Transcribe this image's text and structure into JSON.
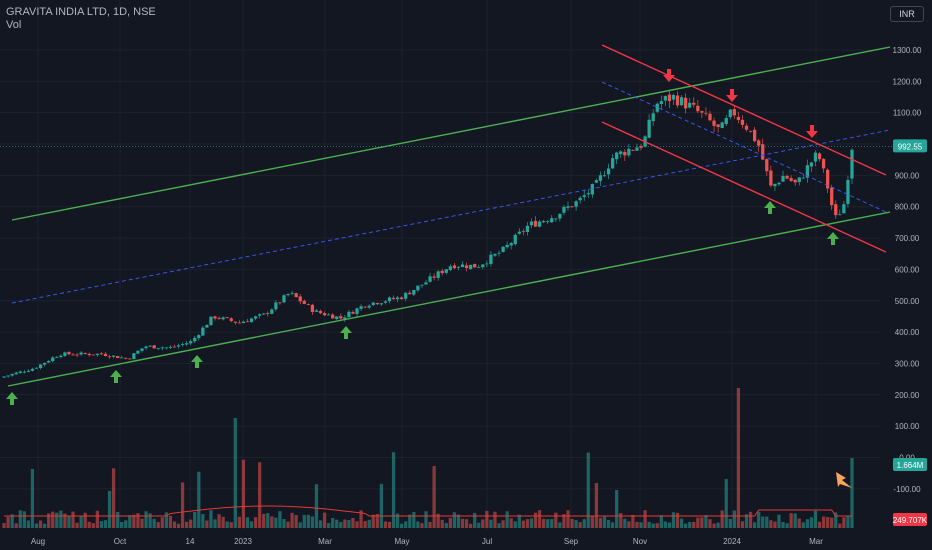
{
  "header": {
    "symbol": "GRAVITA INDIA LTD",
    "interval": "1D",
    "exchange": "NSE",
    "title": "GRAVITA INDIA LTD, 1D, NSE",
    "volume_label": "Vol",
    "currency": "INR"
  },
  "colors": {
    "background": "#131722",
    "grid": "#1e222d",
    "up": "#26a69a",
    "down": "#ef5350",
    "green_channel": "#4caf50",
    "red_channel": "#f23645",
    "midline": "#3d5afe",
    "arrow_up": "#4caf50",
    "arrow_down": "#f23645",
    "orange_arrow": "#f7a55b",
    "vol_ma": "#e53935",
    "price_label_bg": "#26a69a",
    "vol_label_bg": "#26a69a",
    "vol_ma_label_bg": "#f23645"
  },
  "chart_data": {
    "type": "candlestick",
    "title": "GRAVITA INDIA LTD, 1D, NSE",
    "price_axis": {
      "ticks": [
        1300,
        1200,
        1100,
        1000,
        900,
        800,
        700,
        600,
        500,
        400,
        300,
        200,
        100,
        0,
        -100
      ],
      "tick_labels": [
        "1300.00",
        "1200.00",
        "1100.00",
        "1000.00",
        "900.00",
        "800.00",
        "700.00",
        "600.00",
        "500.00",
        "400.00",
        "300.00",
        "200.00",
        "100.00",
        "0.00",
        "-100.00"
      ],
      "last_price": "992.55"
    },
    "time_axis": {
      "labels": [
        "Aug",
        "Oct",
        "14",
        "2023",
        "Mar",
        "May",
        "Jul",
        "Sep",
        "Nov",
        "2024",
        "Mar"
      ]
    },
    "price_path": [
      {
        "t": 0,
        "v": 255
      },
      {
        "t": 0.04,
        "v": 285
      },
      {
        "t": 0.07,
        "v": 330
      },
      {
        "t": 0.12,
        "v": 330
      },
      {
        "t": 0.15,
        "v": 315
      },
      {
        "t": 0.17,
        "v": 355
      },
      {
        "t": 0.2,
        "v": 350
      },
      {
        "t": 0.225,
        "v": 370
      },
      {
        "t": 0.25,
        "v": 450
      },
      {
        "t": 0.28,
        "v": 430
      },
      {
        "t": 0.31,
        "v": 455
      },
      {
        "t": 0.34,
        "v": 525
      },
      {
        "t": 0.37,
        "v": 465
      },
      {
        "t": 0.4,
        "v": 445
      },
      {
        "t": 0.43,
        "v": 490
      },
      {
        "t": 0.47,
        "v": 510
      },
      {
        "t": 0.5,
        "v": 560
      },
      {
        "t": 0.53,
        "v": 615
      },
      {
        "t": 0.56,
        "v": 610
      },
      {
        "t": 0.59,
        "v": 660
      },
      {
        "t": 0.62,
        "v": 740
      },
      {
        "t": 0.65,
        "v": 770
      },
      {
        "t": 0.68,
        "v": 820
      },
      {
        "t": 0.7,
        "v": 870
      },
      {
        "t": 0.72,
        "v": 960
      },
      {
        "t": 0.74,
        "v": 985
      },
      {
        "t": 0.755,
        "v": 1000
      },
      {
        "t": 0.77,
        "v": 1130
      },
      {
        "t": 0.79,
        "v": 1150
      },
      {
        "t": 0.81,
        "v": 1120
      },
      {
        "t": 0.83,
        "v": 1080
      },
      {
        "t": 0.845,
        "v": 1040
      },
      {
        "t": 0.86,
        "v": 1105
      },
      {
        "t": 0.875,
        "v": 1060
      },
      {
        "t": 0.89,
        "v": 1000
      },
      {
        "t": 0.905,
        "v": 860
      },
      {
        "t": 0.92,
        "v": 900
      },
      {
        "t": 0.935,
        "v": 870
      },
      {
        "t": 0.95,
        "v": 935
      },
      {
        "t": 0.96,
        "v": 970
      },
      {
        "t": 0.97,
        "v": 880
      },
      {
        "t": 0.98,
        "v": 760
      },
      {
        "t": 0.99,
        "v": 800
      },
      {
        "t": 1.0,
        "v": 992.55
      }
    ],
    "volume_ma_label": "249.707K",
    "volume_last_label": "1.664M",
    "annotations": {
      "green_up_arrows": 6,
      "red_down_arrows": 3,
      "orange_arrow": 1
    },
    "grid": true,
    "legend": "top-left"
  }
}
